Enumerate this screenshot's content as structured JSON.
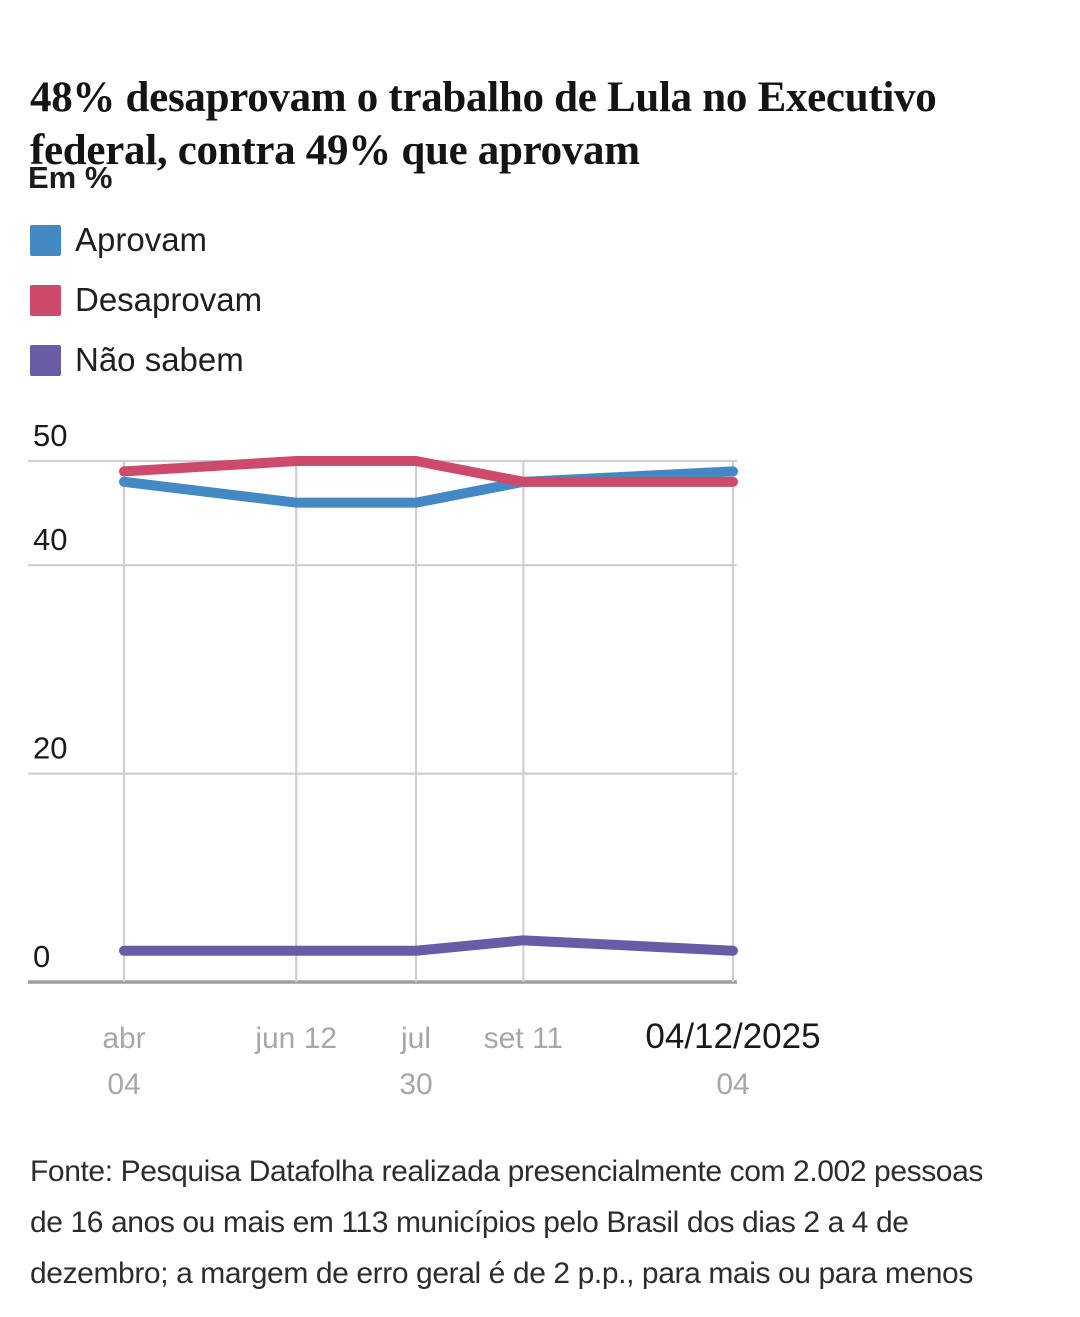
{
  "header": {
    "title_line1": "48% desaprovam o trabalho de Lula no Executivo",
    "title_line2": "federal, contra 49% que aprovam",
    "unit_label": "Em %"
  },
  "legend": [
    {
      "label": "Aprovam",
      "color": "#4589C4"
    },
    {
      "label": "Desaprovam",
      "color": "#CE4A6B"
    },
    {
      "label": "Não sabem",
      "color": "#6A5BA6"
    }
  ],
  "chart_data": {
    "type": "line",
    "title": "48% desaprovam o trabalho de Lula no Executivo federal, contra 49% que aprovam",
    "subtitle": "Em %",
    "categories": [
      "abr 04",
      "jun 12",
      "jul 30",
      "set 11",
      "04/12/2025"
    ],
    "x_days_offset": [
      0,
      69,
      117,
      160,
      244
    ],
    "x_ticks": [
      {
        "line1": "abr",
        "line2": "04",
        "emphasis": false
      },
      {
        "line1": "jun 12",
        "line2": "",
        "emphasis": false
      },
      {
        "line1": "jul",
        "line2": "30",
        "emphasis": false
      },
      {
        "line1": "set 11",
        "line2": "",
        "emphasis": false
      },
      {
        "line1": "04/12/2025",
        "line2": "04",
        "emphasis": true
      }
    ],
    "series": [
      {
        "name": "Aprovam",
        "color": "#4589C4",
        "values": [
          48,
          46,
          46,
          48,
          49
        ]
      },
      {
        "name": "Desaprovam",
        "color": "#CE4A6B",
        "values": [
          49,
          50,
          50,
          48,
          48
        ]
      },
      {
        "name": "Não sabem",
        "color": "#6A5BA6",
        "values": [
          3,
          3,
          3,
          4,
          3
        ]
      }
    ],
    "y_ticks": [
      50,
      40,
      20,
      0
    ],
    "ylim": [
      0,
      52
    ],
    "grid": true,
    "legend_position": "top-left",
    "colors": {
      "gridline": "#cfcfcf",
      "baseline_axis": "#9e9e9e",
      "tick_label_gray": "#a7a7a7",
      "tick_label_emphasis": "#1a1a1a",
      "y_label": "#1a1a1a"
    }
  },
  "footer": {
    "line1": "Fonte: Pesquisa Datafolha realizada presencialmente com 2.002 pessoas",
    "line2": "de 16 anos ou mais em 113 municípios pelo Brasil dos dias 2 a 4 de",
    "line3": "dezembro; a margem de erro geral é de 2 p.p., para mais ou para menos"
  }
}
